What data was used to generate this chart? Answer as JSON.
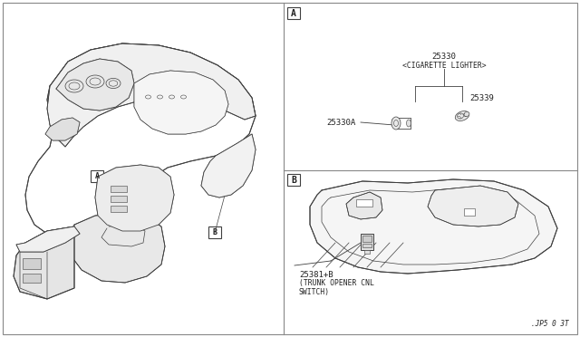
{
  "bg_color": "#ffffff",
  "line_color": "#404040",
  "border_color": "#888888",
  "text_color": "#222222",
  "fig_width": 6.4,
  "fig_height": 3.72,
  "dpi": 100,
  "section_A_label": "A",
  "section_B_label": "B",
  "part_25330_label": "25330",
  "part_25330_sublabel": "<CIGARETTE LIGHTER>",
  "part_25339_label": "25339",
  "part_25330A_label": "25330A",
  "part_25381B_label": "25381+B",
  "part_25381B_sublabel1": "(TRUNK OPENER CNL",
  "part_25381B_sublabel2": "SWITCH)",
  "ref_label": ".JP5 0 3T"
}
